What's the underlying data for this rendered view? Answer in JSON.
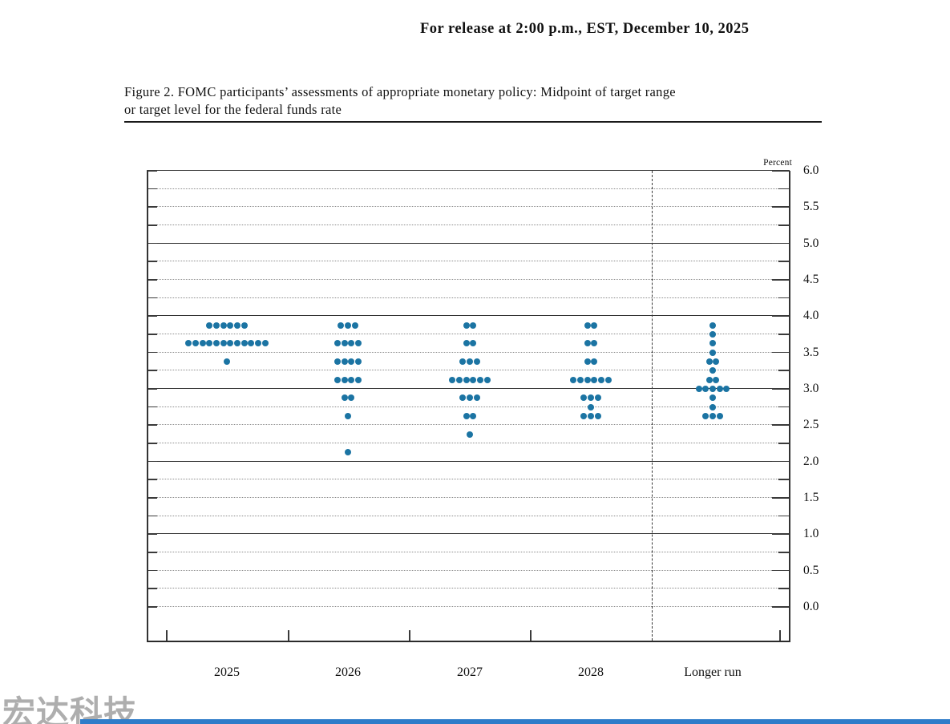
{
  "page": {
    "release_line": "For release at 2:00 p.m., EST, December 10, 2025",
    "figure_title_line1": "Figure 2. FOMC participants’ assessments of appropriate monetary policy: Midpoint of target range",
    "figure_title_line2": "or target level for the federal funds rate",
    "watermark": "宏达科技"
  },
  "chart_data": {
    "type": "scatter",
    "subtype": "fomc-dot-plot",
    "title": "Figure 2. FOMC participants’ assessments of appropriate monetary policy: Midpoint of target range or target level for the federal funds rate",
    "ylabel": "Percent",
    "ylim": [
      0.0,
      6.0
    ],
    "y_label_step": 0.5,
    "y_grid_step": 0.25,
    "y_tick_labels": [
      "6.0",
      "5.5",
      "5.0",
      "4.5",
      "4.0",
      "3.5",
      "3.0",
      "2.5",
      "2.0",
      "1.5",
      "1.0",
      "0.5",
      "0.0"
    ],
    "solid_gridlines": [
      6.0,
      5.0,
      4.0,
      3.0,
      2.0,
      1.0
    ],
    "grid": "dotted line every 0.25 percent, solid line at whole percents",
    "legend": "none",
    "dot_color": "#1b74a3",
    "separator": "dashed vertical line between 2028 and Longer run",
    "categories": [
      "2025",
      "2026",
      "2027",
      "2028",
      "Longer run"
    ],
    "series": [
      {
        "category": "2025",
        "total": 19,
        "dots": [
          {
            "rate": 3.875,
            "count": 6
          },
          {
            "rate": 3.625,
            "count": 12
          },
          {
            "rate": 3.375,
            "count": 1
          }
        ]
      },
      {
        "category": "2026",
        "total": 19,
        "dots": [
          {
            "rate": 3.875,
            "count": 3
          },
          {
            "rate": 3.625,
            "count": 4
          },
          {
            "rate": 3.375,
            "count": 4
          },
          {
            "rate": 3.125,
            "count": 4
          },
          {
            "rate": 2.875,
            "count": 2
          },
          {
            "rate": 2.625,
            "count": 1
          },
          {
            "rate": 2.125,
            "count": 1
          }
        ]
      },
      {
        "category": "2027",
        "total": 19,
        "dots": [
          {
            "rate": 3.875,
            "count": 2
          },
          {
            "rate": 3.625,
            "count": 2
          },
          {
            "rate": 3.375,
            "count": 3
          },
          {
            "rate": 3.125,
            "count": 6
          },
          {
            "rate": 2.875,
            "count": 3
          },
          {
            "rate": 2.625,
            "count": 2
          },
          {
            "rate": 2.375,
            "count": 1
          }
        ]
      },
      {
        "category": "2028",
        "total": 19,
        "dots": [
          {
            "rate": 3.875,
            "count": 2
          },
          {
            "rate": 3.625,
            "count": 2
          },
          {
            "rate": 3.375,
            "count": 2
          },
          {
            "rate": 3.125,
            "count": 6
          },
          {
            "rate": 2.875,
            "count": 3
          },
          {
            "rate": 2.75,
            "count": 1
          },
          {
            "rate": 2.625,
            "count": 3
          }
        ]
      },
      {
        "category": "Longer run",
        "total": 19,
        "dots": [
          {
            "rate": 3.875,
            "count": 1
          },
          {
            "rate": 3.75,
            "count": 1
          },
          {
            "rate": 3.625,
            "count": 1
          },
          {
            "rate": 3.5,
            "count": 1
          },
          {
            "rate": 3.375,
            "count": 2
          },
          {
            "rate": 3.25,
            "count": 1
          },
          {
            "rate": 3.125,
            "count": 2
          },
          {
            "rate": 3.0,
            "count": 5
          },
          {
            "rate": 2.875,
            "count": 1
          },
          {
            "rate": 2.75,
            "count": 1
          },
          {
            "rate": 2.625,
            "count": 3
          }
        ]
      }
    ]
  }
}
